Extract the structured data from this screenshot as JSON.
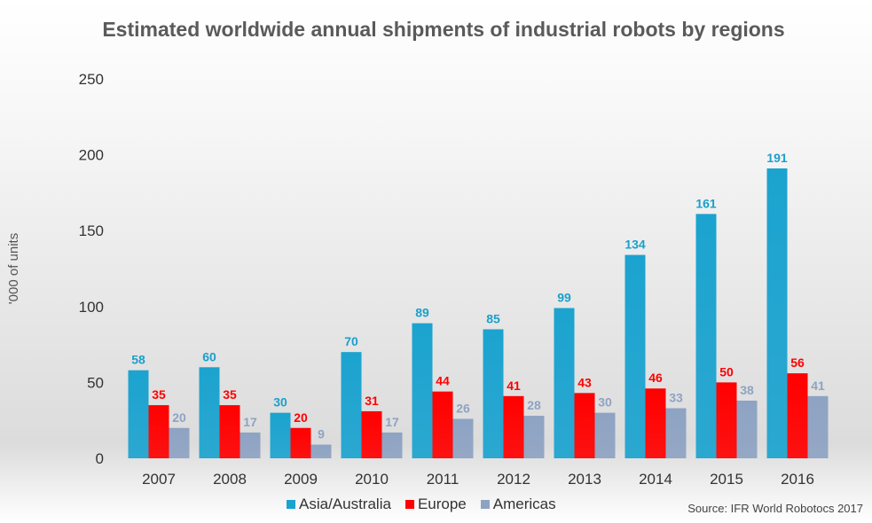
{
  "title": "Estimated worldwide annual shipments of industrial robots by regions",
  "source": "Source: IFR World Robotocs 2017",
  "chart_data": {
    "type": "bar",
    "title": "Estimated worldwide annual shipments of industrial robots by regions",
    "xlabel": "",
    "ylabel": "'000 of units",
    "ylim": [
      0,
      250
    ],
    "yticks": [
      0,
      50,
      100,
      150,
      200,
      250
    ],
    "grid": false,
    "legend_position": "bottom",
    "categories": [
      "2007",
      "2008",
      "2009",
      "2010",
      "2011",
      "2012",
      "2013",
      "2014",
      "2015",
      "2016"
    ],
    "series": [
      {
        "name": "Asia/Australia",
        "color": "#1ba3cf",
        "label_color": "#1aa0cc",
        "values": [
          58,
          60,
          30,
          70,
          89,
          85,
          99,
          134,
          161,
          191
        ]
      },
      {
        "name": "Europe",
        "color": "#ff0000",
        "label_color": "#ff0000",
        "values": [
          35,
          35,
          20,
          31,
          44,
          41,
          43,
          46,
          50,
          56
        ]
      },
      {
        "name": "Americas",
        "color": "#8ea3c3",
        "label_color": "#8ea3c3",
        "values": [
          20,
          17,
          9,
          17,
          26,
          28,
          30,
          33,
          38,
          41
        ]
      }
    ]
  }
}
